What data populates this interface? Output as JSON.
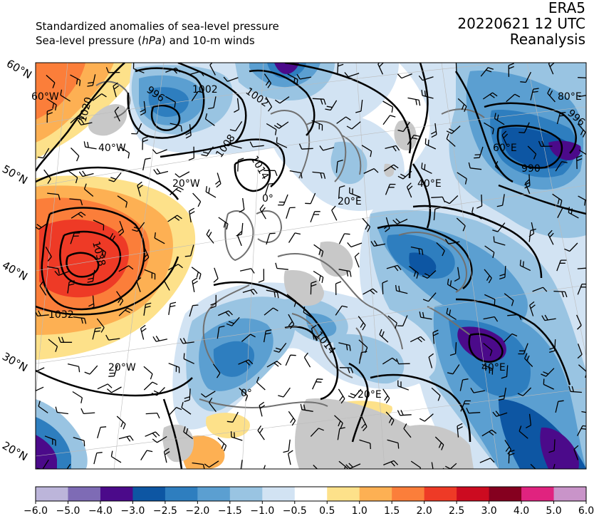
{
  "header": {
    "line1": "Standardized anomalies of sea-level pressure",
    "line2_pre": "Sea-level pressure (",
    "line2_unit": "hPa",
    "line2_post": ") and 10-m winds",
    "model": "ERA5",
    "datetime": "20220621 12 UTC",
    "product": "Reanalysis"
  },
  "latitude_labels": [
    "60°N",
    "50°N",
    "40°N",
    "30°N",
    "20°N"
  ],
  "longitude_labels": [
    "60°W",
    "40°W",
    "20°W",
    "0°",
    "20°E",
    "40°E",
    "60°E",
    "80°E",
    "20°W",
    "0°",
    "20°E",
    "40°E"
  ],
  "isobar_labels": [
    "1020",
    "996",
    "1002",
    "1002",
    "1008",
    "1014",
    "1038",
    "1032",
    "1014",
    "996",
    "990"
  ],
  "colorbar": {
    "ticks": [
      "−6.0",
      "−5.0",
      "−4.0",
      "−3.0",
      "−2.5",
      "−2.0",
      "−1.5",
      "−1.0",
      "−0.5",
      "0.5",
      "1.0",
      "1.5",
      "2.0",
      "2.5",
      "3.0",
      "4.0",
      "5.0",
      "6.0"
    ],
    "colors": [
      "#bcb5da",
      "#7e6bb5",
      "#4b0a8a",
      "#0d56a3",
      "#2e7ebf",
      "#5b9fd1",
      "#99c4e2",
      "#d2e3f3",
      "#ffffff",
      "#fde18a",
      "#fdb053",
      "#fb7e3a",
      "#ee3a26",
      "#cc0b20",
      "#85001f",
      "#e0237f",
      "#c994c9"
    ]
  }
}
